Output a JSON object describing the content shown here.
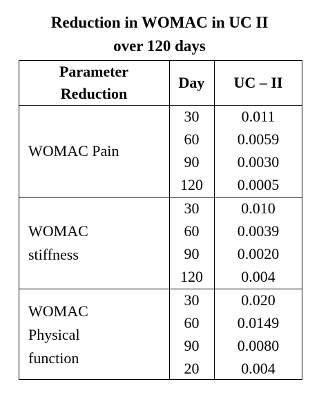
{
  "title": [
    "Reduction in WOMAC in UC II",
    "over 120 days"
  ],
  "table": {
    "header": [
      [
        "Parameter",
        "Reduction"
      ],
      "Day",
      "UC – II"
    ],
    "groups": [
      {
        "parameter": [
          "WOMAC Pain"
        ],
        "rows": [
          [
            "30",
            "0.011"
          ],
          [
            "60",
            "0.0059"
          ],
          [
            "90",
            "0.0030"
          ],
          [
            "120",
            "0.0005"
          ]
        ]
      },
      {
        "parameter": [
          "WOMAC",
          "stiffness"
        ],
        "rows": [
          [
            "30",
            "0.010"
          ],
          [
            "60",
            "0.0039"
          ],
          [
            "90",
            "0.0020"
          ],
          [
            "120",
            "0.004"
          ]
        ]
      },
      {
        "parameter": [
          "WOMAC",
          "Physical",
          "function"
        ],
        "rows": [
          [
            "30",
            "0.020"
          ],
          [
            "60",
            "0.0149"
          ],
          [
            "90",
            "0.0080"
          ],
          [
            "20",
            "0.004"
          ]
        ]
      }
    ]
  }
}
